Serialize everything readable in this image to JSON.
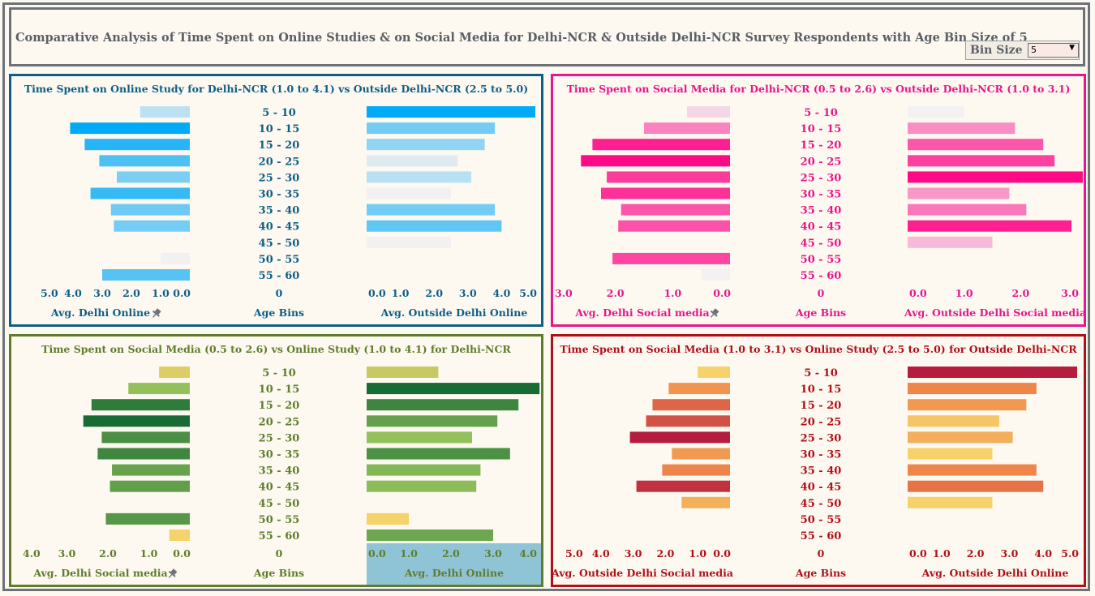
{
  "title": "Comparative Analysis of Time Spent on Online Studies & on Social Media for Delhi-NCR & Outside Delhi-NCR Survey Respondents with Age Bin Size of 5",
  "bin_size": {
    "label": "Bin Size",
    "value": "5"
  },
  "chart_data": [
    {
      "type": "bar",
      "orientation": "horizontal",
      "title": "Time Spent on Online Study for Delhi-NCR (1.0 to 4.1) vs Outside Delhi-NCR (2.5 to 5.0)",
      "categories": [
        "5 - 10",
        "10 - 15",
        "15 - 20",
        "20 - 25",
        "25 - 30",
        "30 - 35",
        "35 - 40",
        "40 - 45",
        "45 - 50",
        "50 - 55",
        "55 - 60"
      ],
      "center_axis": {
        "title": "Age Bins",
        "tick": "0"
      },
      "left": {
        "label": "Avg. Delhi Online",
        "ticks": [
          "5.0",
          "4.0",
          "3.0",
          "2.0",
          "1.0",
          "0.0"
        ],
        "range": [
          0,
          5
        ],
        "values": [
          1.7,
          4.1,
          3.6,
          3.1,
          2.5,
          3.4,
          2.7,
          2.6,
          null,
          1.0,
          3.0
        ],
        "pin_icon": "pin-icon"
      },
      "right": {
        "label": "Avg. Outside Delhi Online",
        "ticks": [
          "0.0",
          "1.0",
          "2.0",
          "3.0",
          "4.0",
          "5.0"
        ],
        "range": [
          0,
          5
        ],
        "values": [
          5.0,
          3.8,
          3.5,
          2.7,
          3.1,
          2.5,
          3.8,
          4.0,
          2.5,
          null,
          null
        ]
      },
      "colors": {
        "border": "#0e5f86",
        "title": "#0e5f86",
        "low": "#f1f1f1",
        "high": "#00aaf6"
      }
    },
    {
      "type": "bar",
      "orientation": "horizontal",
      "title": "Time Spent on Social Media for Delhi-NCR (0.5 to 2.6) vs Outside Delhi-NCR (1.0 to 3.1)",
      "categories": [
        "5 - 10",
        "10 - 15",
        "15 - 20",
        "20 - 25",
        "25 - 30",
        "30 - 35",
        "35 - 40",
        "40 - 45",
        "45 - 50",
        "50 - 55",
        "55 - 60"
      ],
      "center_axis": {
        "title": "Age Bins",
        "tick": "0"
      },
      "left": {
        "label": "Avg. Delhi Social media",
        "ticks": [
          "3.0",
          "2.0",
          "1.0",
          "0.0"
        ],
        "range": [
          0,
          3
        ],
        "values": [
          0.75,
          1.5,
          2.4,
          2.6,
          2.15,
          2.25,
          1.9,
          1.95,
          null,
          2.05,
          0.5
        ],
        "pin_icon": "pin-icon"
      },
      "right": {
        "label": "Avg. Outside Delhi Social media",
        "ticks": [
          "0.0",
          "1.0",
          "2.0",
          "3.0"
        ],
        "range": [
          0,
          3
        ],
        "values": [
          1.0,
          1.9,
          2.4,
          2.6,
          3.1,
          1.8,
          2.1,
          2.9,
          1.5,
          null,
          null
        ]
      },
      "colors": {
        "border": "#e8168a",
        "title": "#e8168a",
        "low": "#f3f1f1",
        "high": "#ff0a86"
      }
    },
    {
      "type": "bar",
      "orientation": "horizontal",
      "title": "Time Spent on Social Media (0.5 to 2.6) vs Online Study (1.0 to 4.1) for Delhi-NCR",
      "categories": [
        "5 - 10",
        "10 - 15",
        "15 - 20",
        "20 - 25",
        "25 - 30",
        "30 - 35",
        "35 - 40",
        "40 - 45",
        "45 - 50",
        "50 - 55",
        "55 - 60"
      ],
      "center_axis": {
        "title": "Age Bins",
        "tick": "0"
      },
      "left": {
        "label": "Avg. Delhi Social media",
        "ticks": [
          "4.0",
          "3.0",
          "2.0",
          "1.0",
          "0.0"
        ],
        "range": [
          0,
          4
        ],
        "values": [
          0.75,
          1.5,
          2.4,
          2.6,
          2.15,
          2.25,
          1.9,
          1.95,
          null,
          2.05,
          0.5
        ],
        "pin_icon": "pin-icon"
      },
      "right": {
        "label": "Avg. Delhi Online",
        "ticks": [
          "0.0",
          "1.0",
          "2.0",
          "3.0",
          "4.0"
        ],
        "range": [
          0,
          4
        ],
        "values": [
          1.7,
          4.1,
          3.6,
          3.1,
          2.5,
          3.4,
          2.7,
          2.6,
          null,
          1.0,
          3.0
        ],
        "highlight_bg": "#8fc3d6"
      },
      "colors": {
        "border": "#5e7d2c",
        "title": "#5e7d2c",
        "low": "#f5d26a",
        "high": "#176b34"
      }
    },
    {
      "type": "bar",
      "orientation": "horizontal",
      "title": "Time Spent on Social Media (1.0 to 3.1) vs Online Study  (2.5 to 5.0) for Outside Delhi-NCR",
      "categories": [
        "5 - 10",
        "10 - 15",
        "15 - 20",
        "20 - 25",
        "25 - 30",
        "30 - 35",
        "35 - 40",
        "40 - 45",
        "45 - 50",
        "50 - 55",
        "55 - 60"
      ],
      "center_axis": {
        "title": "Age Bins",
        "tick": "0"
      },
      "left": {
        "label": "Avg. Outside Delhi Social media",
        "ticks": [
          "5.0",
          "4.0",
          "3.0",
          "2.0",
          "1.0",
          "0.0"
        ],
        "range": [
          0,
          5
        ],
        "values": [
          1.0,
          1.9,
          2.4,
          2.6,
          3.1,
          1.8,
          2.1,
          2.9,
          1.5,
          null,
          null
        ]
      },
      "right": {
        "label": "Avg. Outside Delhi Online",
        "ticks": [
          "0.0",
          "1.0",
          "2.0",
          "3.0",
          "4.0",
          "5.0"
        ],
        "range": [
          0,
          5
        ],
        "values": [
          5.0,
          3.8,
          3.5,
          2.7,
          3.1,
          2.5,
          3.8,
          4.0,
          2.5,
          null,
          null
        ]
      },
      "colors": {
        "border": "#b01018",
        "title": "#b01018",
        "low": "#f5d26a",
        "high": "#b51d3e"
      }
    }
  ]
}
